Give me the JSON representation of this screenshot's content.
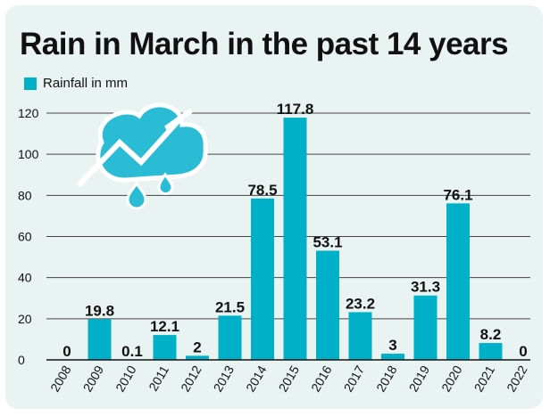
{
  "chart_data": {
    "type": "bar",
    "title": "Rain in March in the past 14 years",
    "categories": [
      "2008",
      "2009",
      "2010",
      "2011",
      "2012",
      "2013",
      "2014",
      "2015",
      "2016",
      "2017",
      "2018",
      "2019",
      "2020",
      "2021",
      "2022"
    ],
    "series": [
      {
        "name": "Rainfall in mm",
        "values": [
          0,
          19.8,
          0.1,
          12.1,
          2,
          21.5,
          78.5,
          117.8,
          53.1,
          23.2,
          3,
          31.3,
          76.1,
          8.2,
          0
        ]
      }
    ],
    "data_labels": [
      "0",
      "19.8",
      "0.1",
      "12.1",
      "2",
      "21.5",
      "78.5",
      "117.8",
      "53.1",
      "23.2",
      "3",
      "31.3",
      "76.1",
      "8.2",
      "0"
    ],
    "ylim": [
      0,
      120
    ],
    "yticks": [
      0,
      20,
      40,
      60,
      80,
      100,
      120
    ],
    "grid": true,
    "legend_position": "top-left",
    "bar_color": "#00afc8",
    "icon": "rain-cloud-lightning-icon"
  }
}
